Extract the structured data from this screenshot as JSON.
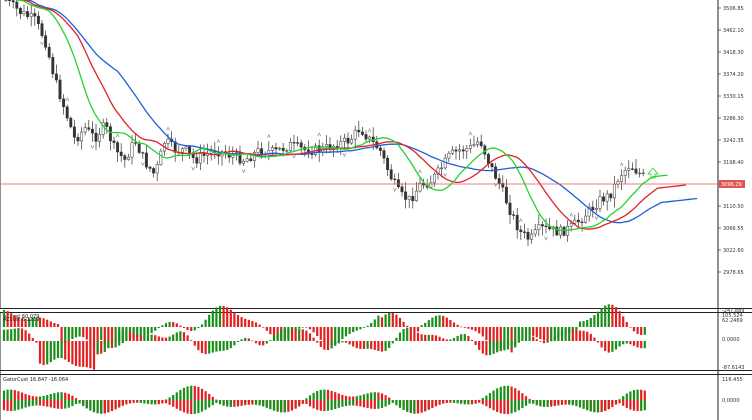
{
  "colors": {
    "background": "#ffffff",
    "candle": "#333333",
    "ma_blue": "#1f5fd6",
    "ma_red": "#e0222a",
    "ma_green": "#22d42e",
    "osc_green": "#1a8f1a",
    "osc_red": "#e02020",
    "price_line": "#e05555",
    "fractal": "#999999"
  },
  "price_axis": {
    "ticks": [
      "3506.85",
      "3462.10",
      "3418.30",
      "3374.20",
      "3330.15",
      "3286.30",
      "3242.35",
      "3198.40",
      "3154.45",
      "3110.50",
      "3066.55",
      "3022.60",
      "2978.65"
    ],
    "current_price": "3096.29"
  },
  "panels": [
    {
      "title": "ACcust 60.079",
      "scale": [
        "105.524",
        "-247.889"
      ]
    },
    {
      "title": "ACcust 6.1219",
      "scale": [
        "62.2469",
        "0.0000",
        "-87.6143"
      ]
    },
    {
      "title": "GatorCust 16.847 -16.064",
      "scale": [
        "116.455",
        "0.0000"
      ]
    }
  ]
}
